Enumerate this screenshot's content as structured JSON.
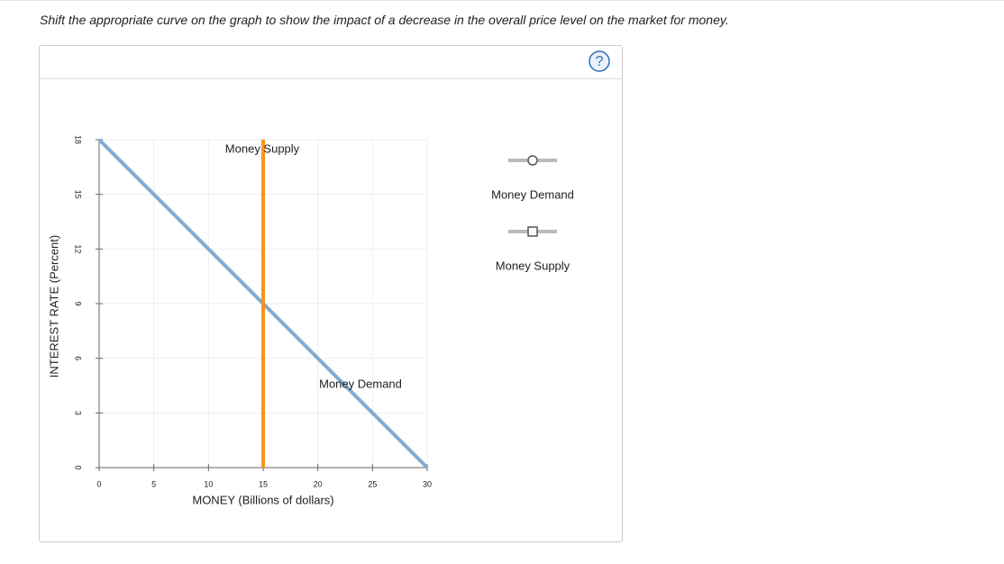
{
  "instruction": "Shift the appropriate curve on the graph to show the impact of a decrease in the overall price level on the market for money.",
  "help_icon": "?",
  "chart_data": {
    "type": "line",
    "x_label": "MONEY (Billions of dollars)",
    "y_label": "INTEREST RATE (Percent)",
    "xlim": [
      0,
      30
    ],
    "ylim": [
      0,
      18
    ],
    "xticks": [
      0,
      5,
      10,
      15,
      20,
      25,
      30
    ],
    "yticks": [
      0,
      3,
      6,
      9,
      12,
      15,
      18
    ],
    "grid": true,
    "series": [
      {
        "name": "Money Demand",
        "color": "#7fabd4",
        "marker": "circle",
        "x": [
          0,
          30
        ],
        "values": [
          18,
          0
        ]
      },
      {
        "name": "Money Supply",
        "color": "#f7941d",
        "marker": "square",
        "x": [
          15,
          15
        ],
        "values": [
          18,
          0
        ]
      }
    ]
  }
}
